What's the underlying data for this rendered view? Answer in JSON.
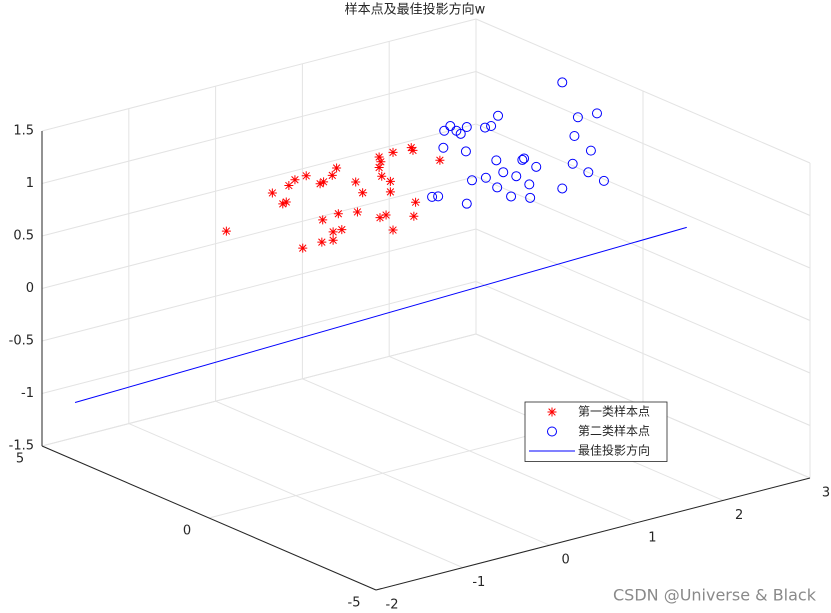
{
  "chart_data": {
    "type": "scatter3d",
    "title": "样本点及最佳投影方向w",
    "xlim": [
      -2,
      3
    ],
    "xticks": [
      -2,
      -1,
      0,
      1,
      2,
      3
    ],
    "ylim": [
      -5,
      5
    ],
    "yticks": [
      -5,
      0,
      5
    ],
    "zlim": [
      -1.5,
      1.5
    ],
    "zticks": [
      -1.5,
      -1,
      -0.5,
      0,
      0.5,
      1,
      1.5
    ],
    "grid": true,
    "legend": "southeast",
    "watermark": "CSDN @Universe & Black",
    "series": [
      {
        "name": "第一类样本点",
        "color": "#ff0000",
        "marker": "*",
        "x": [
          -1.8,
          -1.27,
          -1.15,
          -1.11,
          -1.08,
          -1.01,
          -0.88,
          -0.92,
          -0.72,
          -0.68,
          -0.69,
          -0.7,
          -0.58,
          -0.53,
          -0.57,
          -0.57,
          -0.51,
          -0.47,
          -0.31,
          -0.29,
          -0.23,
          -0.04,
          -0.02,
          -0.04,
          -0.01,
          0.12,
          0.09,
          0.09,
          -0.03,
          0.04,
          0.12,
          0.33,
          0.35,
          0.38,
          0.36,
          0.66
        ],
        "y": [
          0,
          0,
          0,
          0,
          0,
          0,
          0,
          0,
          0,
          0,
          0,
          0,
          0,
          0,
          0,
          0,
          0,
          0,
          0,
          0,
          0,
          0,
          0,
          0,
          0,
          0,
          0,
          0,
          0,
          0,
          0,
          0,
          0,
          0,
          0,
          0
        ],
        "z": [
          1.19,
          1.44,
          1.31,
          1.32,
          1.47,
          1.51,
          1.52,
          0.84,
          1.41,
          1.42,
          1.06,
          0.85,
          1.46,
          1.52,
          0.92,
          0.84,
          1.08,
          0.92,
          1.34,
          1.05,
          1.22,
          1.52,
          1.47,
          1.42,
          1.33,
          1.53,
          1.26,
          1.16,
          0.94,
          0.95,
          0.79,
          1.53,
          1.5,
          1.0,
          0.87,
          1.34
        ]
      },
      {
        "name": "第二类样本点",
        "color": "#0000ff",
        "marker": "o",
        "x": [
          2.07,
          2.25,
          2.47,
          2.21,
          2.4,
          2.19,
          2.37,
          2.55,
          2.07,
          1.7,
          1.48,
          1.69,
          1.54,
          1.63,
          1.77,
          1.61,
          1.39,
          1.32,
          1.19,
          1.31,
          1.03,
          0.97,
          0.57,
          0.64,
          0.71,
          0.78,
          0.85,
          0.9,
          0.97,
          0.96,
          0.7,
          1.18,
          1.25,
          1.33
        ],
        "y": [
          0,
          0,
          0,
          0,
          0,
          0,
          0,
          0,
          0,
          0,
          0,
          0,
          0,
          0,
          0,
          0,
          0,
          0,
          0,
          0,
          0,
          0,
          0,
          0,
          0,
          0,
          0,
          0,
          0,
          0,
          0,
          0,
          0,
          0
        ],
        "z": [
          1.78,
          1.41,
          1.4,
          1.24,
          1.06,
          0.98,
          0.86,
          0.74,
          0.77,
          0.76,
          0.82,
          0.89,
          1.0,
          1.15,
          1.04,
          1.14,
          1.07,
          0.94,
          1.06,
          1.2,
          1.07,
          0.86,
          1.01,
          1.0,
          1.61,
          1.64,
          1.58,
          1.54,
          1.59,
          1.36,
          1.45,
          1.54,
          1.54,
          1.62
        ]
      },
      {
        "name": "最佳投影方向",
        "color": "#0000ff",
        "marker": "line",
        "x": [
          -2,
          1.58
        ],
        "y": [
          4.01,
          -5
        ],
        "z": [
          -0.95,
          1.19
        ]
      }
    ]
  }
}
